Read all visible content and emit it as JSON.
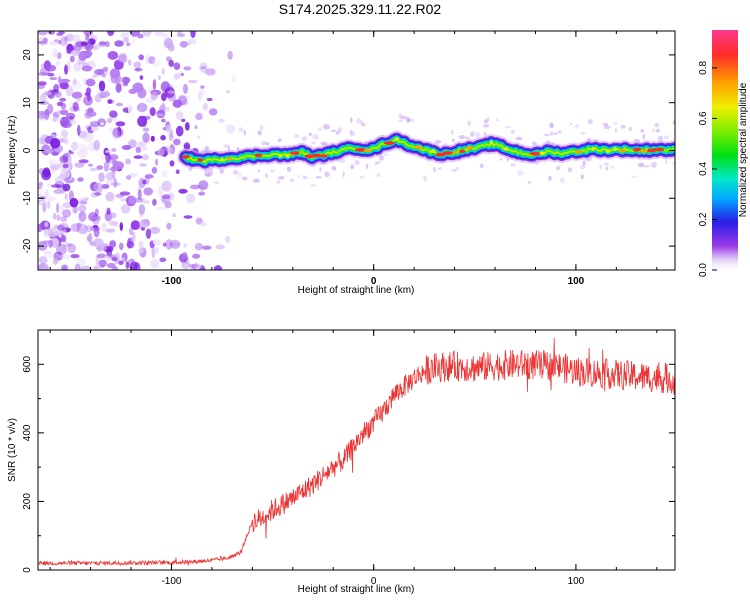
{
  "title": "S174.2025.329.11.22.R02",
  "chart_data": [
    {
      "type": "heatmap",
      "panel": "spectrogram",
      "xlabel": "Height of straight line (km)",
      "ylabel": "Frequency (Hz)",
      "xlim": [
        -166,
        149
      ],
      "ylim": [
        -25,
        25
      ],
      "xticks": [
        -100,
        0,
        100
      ],
      "yticks": [
        -20,
        -10,
        0,
        10,
        20
      ],
      "noise_region_x": [
        -166,
        -76
      ],
      "signal_start_x": -93,
      "signal_trace": {
        "x": [
          -93,
          -85,
          -80,
          -70,
          -60,
          -50,
          -42,
          -36,
          -30,
          -24,
          -18,
          -10,
          -4,
          0,
          6,
          12,
          16,
          22,
          28,
          34,
          40,
          46,
          52,
          58,
          62,
          68,
          74,
          80,
          86,
          92,
          100,
          108,
          116,
          124,
          132,
          140,
          149
        ],
        "y": [
          -1.5,
          -2.2,
          -2.0,
          -1.6,
          -1.2,
          -0.8,
          -1.0,
          -0.3,
          -1.4,
          -0.8,
          -0.2,
          0.6,
          0.2,
          0.3,
          1.6,
          2.2,
          1.4,
          0.6,
          -0.2,
          -0.8,
          -0.3,
          0.2,
          0.6,
          1.4,
          1.0,
          0.0,
          -0.6,
          -0.9,
          -0.2,
          -0.6,
          -0.2,
          0.3,
          0.1,
          0.2,
          0.0,
          0.2,
          0.1
        ]
      },
      "colorbar": {
        "label": "Normalized spectral amplitude",
        "range": [
          0.0,
          0.95
        ],
        "ticks": [
          "0.0",
          "0.2",
          "0.4",
          "0.6",
          "0.8"
        ]
      }
    },
    {
      "type": "line",
      "panel": "snr",
      "xlabel": "Height of straight line (km)",
      "ylabel": "SNR (10 * v/v)",
      "xlim": [
        -166,
        149
      ],
      "ylim": [
        0,
        700
      ],
      "xticks": [
        -100,
        0,
        100
      ],
      "yticks": [
        0,
        200,
        400,
        600
      ],
      "color": "#ee3333",
      "series": [
        {
          "name": "SNR",
          "x": [
            -166,
            -140,
            -120,
            -100,
            -90,
            -80,
            -72,
            -66,
            -60,
            -56,
            -50,
            -40,
            -30,
            -20,
            -15,
            -10,
            -5,
            0,
            5,
            10,
            15,
            20,
            25,
            30,
            40,
            50,
            60,
            70,
            80,
            90,
            100,
            110,
            120,
            130,
            140,
            149
          ],
          "values": [
            20,
            20,
            21,
            22,
            24,
            28,
            35,
            50,
            140,
            150,
            175,
            210,
            250,
            300,
            320,
            360,
            400,
            430,
            465,
            510,
            535,
            560,
            580,
            590,
            595,
            590,
            595,
            600,
            598,
            595,
            580,
            575,
            570,
            565,
            560,
            555
          ],
          "noise_amplitude": 40
        }
      ]
    }
  ]
}
